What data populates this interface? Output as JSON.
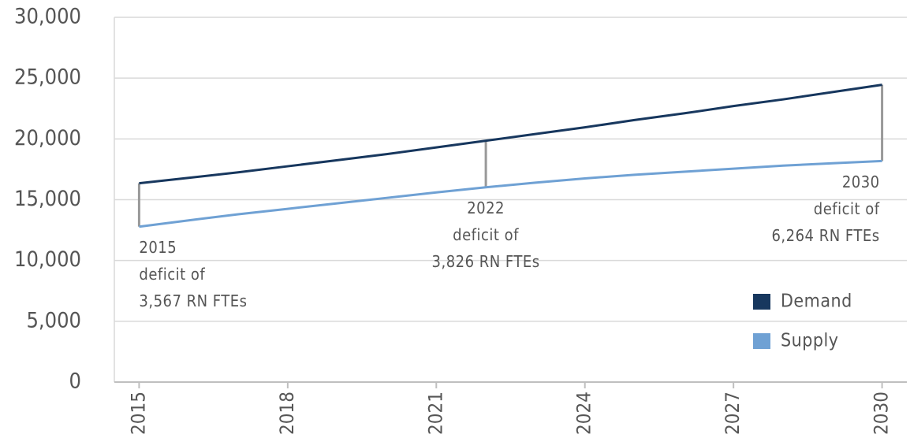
{
  "chart_data": {
    "type": "line",
    "x": [
      2015,
      2016,
      2017,
      2018,
      2019,
      2020,
      2021,
      2022,
      2023,
      2024,
      2025,
      2026,
      2027,
      2028,
      2029,
      2030
    ],
    "xlim": [
      2014.5,
      2030.5
    ],
    "xticks": [
      2015,
      2018,
      2021,
      2024,
      2027,
      2030
    ],
    "ylim": [
      0,
      30000
    ],
    "yticks": [
      0,
      {
        "value": 5000,
        "label": "5,000"
      },
      {
        "value": 10000,
        "label": "10,000"
      },
      {
        "value": 15000,
        "label": "15,000"
      },
      {
        "value": 20000,
        "label": "20,000"
      },
      {
        "value": 25000,
        "label": "25,000"
      },
      {
        "value": 30000,
        "label": "30,000"
      }
    ],
    "grid": true,
    "legend": "lower right",
    "series": [
      {
        "name": "Demand",
        "color": "#17375e",
        "values": [
          16350,
          16800,
          17250,
          17750,
          18250,
          18750,
          19300,
          19850,
          20400,
          20950,
          21550,
          22100,
          22700,
          23250,
          23850,
          24450
        ]
      },
      {
        "name": "Supply",
        "color": "#6fa1d4",
        "values": [
          12783,
          13300,
          13800,
          14250,
          14700,
          15150,
          15600,
          16024,
          16400,
          16750,
          17050,
          17300,
          17550,
          17800,
          18000,
          18186
        ]
      }
    ],
    "annotations": [
      {
        "x": 2015,
        "deficit": 3567,
        "lines": [
          "2015",
          "deficit of",
          "3,567 RN FTEs"
        ]
      },
      {
        "x": 2022,
        "deficit": 3826,
        "lines": [
          "2022",
          "deficit of",
          "3,826 RN FTEs"
        ]
      },
      {
        "x": 2030,
        "deficit": 6264,
        "lines": [
          "2030",
          "deficit of",
          "6,264 RN FTEs"
        ]
      }
    ]
  }
}
